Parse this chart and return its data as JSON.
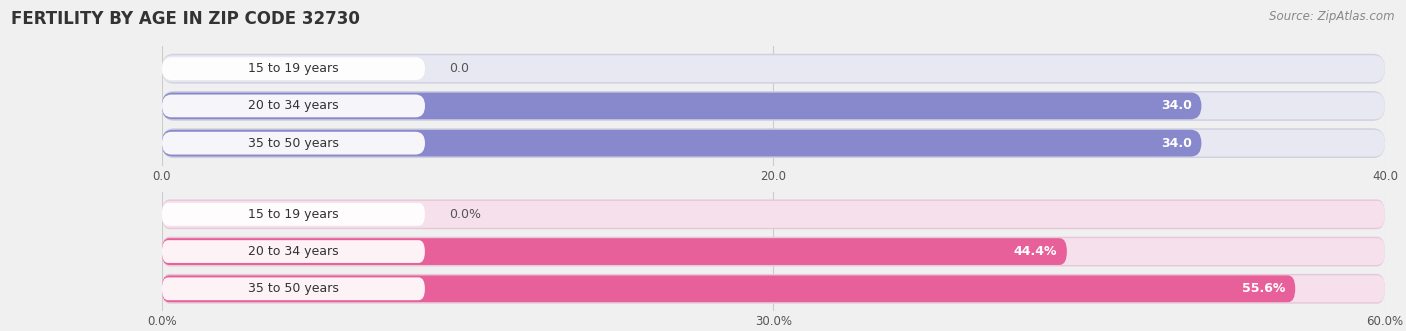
{
  "title": "FERTILITY BY AGE IN ZIP CODE 32730",
  "source": "Source: ZipAtlas.com",
  "top_chart": {
    "categories": [
      "15 to 19 years",
      "20 to 34 years",
      "35 to 50 years"
    ],
    "values": [
      0.0,
      34.0,
      34.0
    ],
    "xlim": [
      0,
      40
    ],
    "xticks": [
      0.0,
      20.0,
      40.0
    ],
    "bar_color": "#8888cc",
    "bar_bg_color": "#e8e8f2",
    "bar_shadow_color": "#d0d0e0",
    "label_color": "#ffffff",
    "label_outside_color": "#555555",
    "pct": false
  },
  "bottom_chart": {
    "categories": [
      "15 to 19 years",
      "20 to 34 years",
      "35 to 50 years"
    ],
    "values": [
      0.0,
      44.4,
      55.6
    ],
    "xlim": [
      0,
      60
    ],
    "xticks": [
      0.0,
      30.0,
      60.0
    ],
    "xtick_labels": [
      "0.0%",
      "30.0%",
      "60.0%"
    ],
    "bar_color": "#e8609a",
    "bar_bg_color": "#f5e0ec",
    "bar_shadow_color": "#e8c8d8",
    "label_color": "#ffffff",
    "label_outside_color": "#555555",
    "pct": true
  },
  "bg_color": "#f0f0f0",
  "title_fontsize": 12,
  "source_fontsize": 8.5,
  "label_fontsize": 9,
  "cat_fontsize": 9,
  "tick_fontsize": 8.5,
  "cat_label_bg": "#ffffff"
}
